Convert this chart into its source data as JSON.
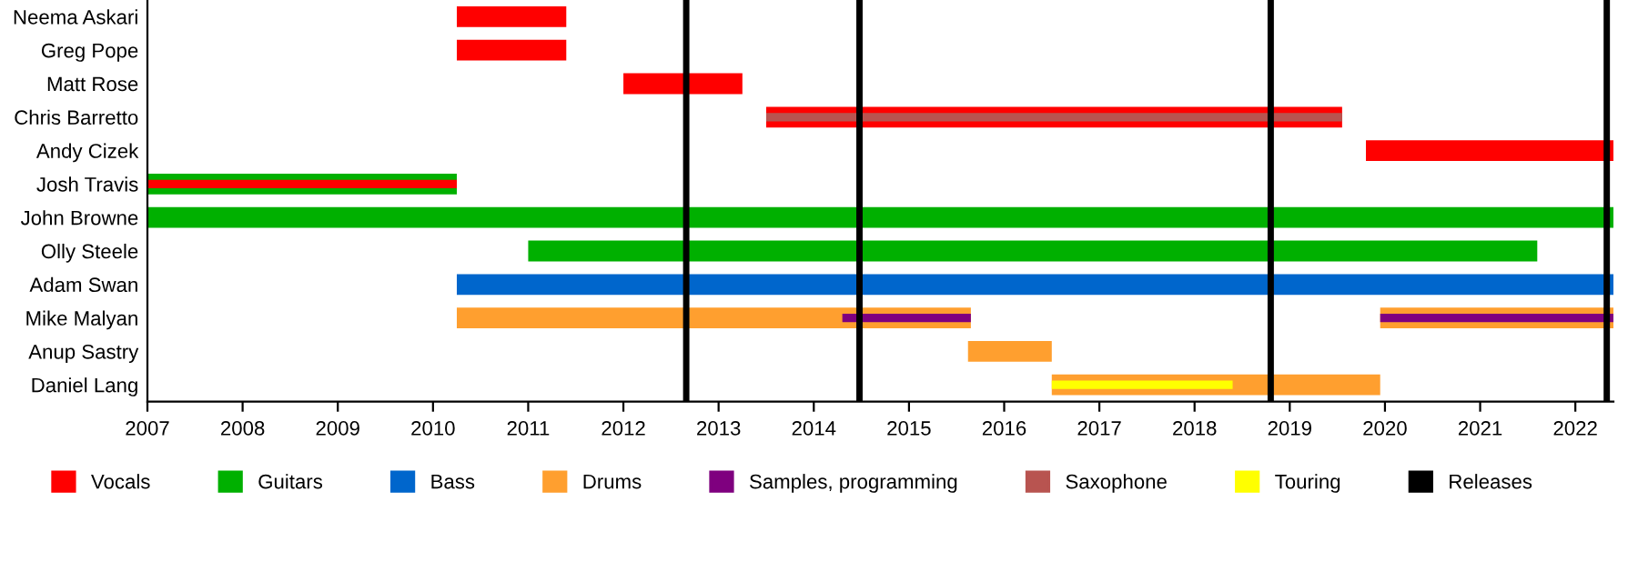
{
  "chart_data": {
    "type": "bar",
    "orientation": "horizontal",
    "categories": [
      "Neema Askari",
      "Greg Pope",
      "Matt Rose",
      "Chris Barretto",
      "Andy Cizek",
      "Josh Travis",
      "John Browne",
      "Olly Steele",
      "Adam Swan",
      "Mike Malyan",
      "Anup Sastry",
      "Daniel Lang"
    ],
    "series": [
      {
        "name": "Vocals",
        "color": "#ff0000",
        "base": [
          2010.25,
          2010.25,
          2012.0,
          2013.5,
          2019.8,
          null,
          null,
          null,
          null,
          null,
          null,
          null
        ],
        "values": [
          1.15,
          1.15,
          1.25,
          6.05,
          2.6,
          null,
          null,
          null,
          null,
          null,
          null,
          null
        ]
      },
      {
        "name": "Guitars",
        "color": "#00b000",
        "base": [
          null,
          null,
          null,
          null,
          null,
          2007,
          2007,
          2011.0,
          null,
          null,
          null,
          null
        ],
        "values": [
          null,
          null,
          null,
          null,
          null,
          3.25,
          15.4,
          10.6,
          null,
          null,
          null,
          null
        ]
      },
      {
        "color": "#ff0000",
        "base": [
          null,
          null,
          null,
          null,
          null,
          2007,
          null,
          null,
          null,
          null,
          null,
          null
        ],
        "values": [
          null,
          null,
          null,
          null,
          null,
          3.25,
          null,
          null,
          null,
          null,
          null,
          null
        ]
      },
      {
        "name": "Bass",
        "color": "#0066cc",
        "base": [
          null,
          null,
          null,
          null,
          null,
          null,
          null,
          null,
          2010.25,
          null,
          null,
          null
        ],
        "values": [
          null,
          null,
          null,
          null,
          null,
          null,
          null,
          null,
          12.15,
          null,
          null,
          null
        ]
      },
      {
        "name": "Drums",
        "color": "#ff9f2f",
        "base": [
          null,
          null,
          null,
          null,
          null,
          null,
          null,
          null,
          null,
          2010.25,
          2015.62,
          2016.5
        ],
        "values": [
          null,
          null,
          null,
          null,
          null,
          null,
          null,
          null,
          null,
          5.4,
          0.88,
          3.45
        ]
      },
      {
        "color": "#ff9f2f",
        "base": [
          null,
          null,
          null,
          null,
          null,
          null,
          null,
          null,
          null,
          2019.95,
          null,
          null
        ],
        "values": [
          null,
          null,
          null,
          null,
          null,
          null,
          null,
          null,
          null,
          2.45,
          null,
          null
        ]
      },
      {
        "name": "Samples, programming",
        "color": "#7f007f",
        "base": [
          null,
          null,
          null,
          null,
          null,
          null,
          null,
          null,
          null,
          2014.3,
          null,
          null
        ],
        "values": [
          null,
          null,
          null,
          null,
          null,
          null,
          null,
          null,
          null,
          1.35,
          null,
          null
        ]
      },
      {
        "color": "#7f007f",
        "base": [
          null,
          null,
          null,
          null,
          null,
          null,
          null,
          null,
          null,
          2019.95,
          null,
          null
        ],
        "values": [
          null,
          null,
          null,
          null,
          null,
          null,
          null,
          null,
          null,
          2.45,
          null,
          null
        ]
      },
      {
        "name": "Saxophone",
        "color": "#b85450",
        "base": [
          null,
          null,
          null,
          2013.5,
          null,
          null,
          null,
          null,
          null,
          null,
          null,
          null
        ],
        "values": [
          null,
          null,
          null,
          6.05,
          null,
          null,
          null,
          null,
          null,
          null,
          null,
          null
        ]
      },
      {
        "name": "Touring",
        "color": "#ffff00",
        "base": [
          null,
          null,
          null,
          null,
          null,
          null,
          null,
          null,
          null,
          null,
          null,
          2016.5
        ],
        "values": [
          null,
          null,
          null,
          null,
          null,
          null,
          null,
          null,
          null,
          null,
          null,
          1.9
        ]
      }
    ],
    "ref_lines": [
      {
        "axis": "x",
        "value": 2012.66,
        "label": "Releases",
        "color": "#000000"
      },
      {
        "axis": "x",
        "value": 2014.48,
        "color": "#000000"
      },
      {
        "axis": "x",
        "value": 2018.8,
        "color": "#000000"
      },
      {
        "axis": "x",
        "value": 2022.33,
        "color": "#000000"
      }
    ],
    "xlim": [
      2007,
      2022.4
    ],
    "xticks": [
      2007,
      2008,
      2009,
      2010,
      2011,
      2012,
      2013,
      2014,
      2015,
      2016,
      2017,
      2018,
      2019,
      2020,
      2021,
      2022
    ],
    "grid": false,
    "legend": "bottom"
  }
}
